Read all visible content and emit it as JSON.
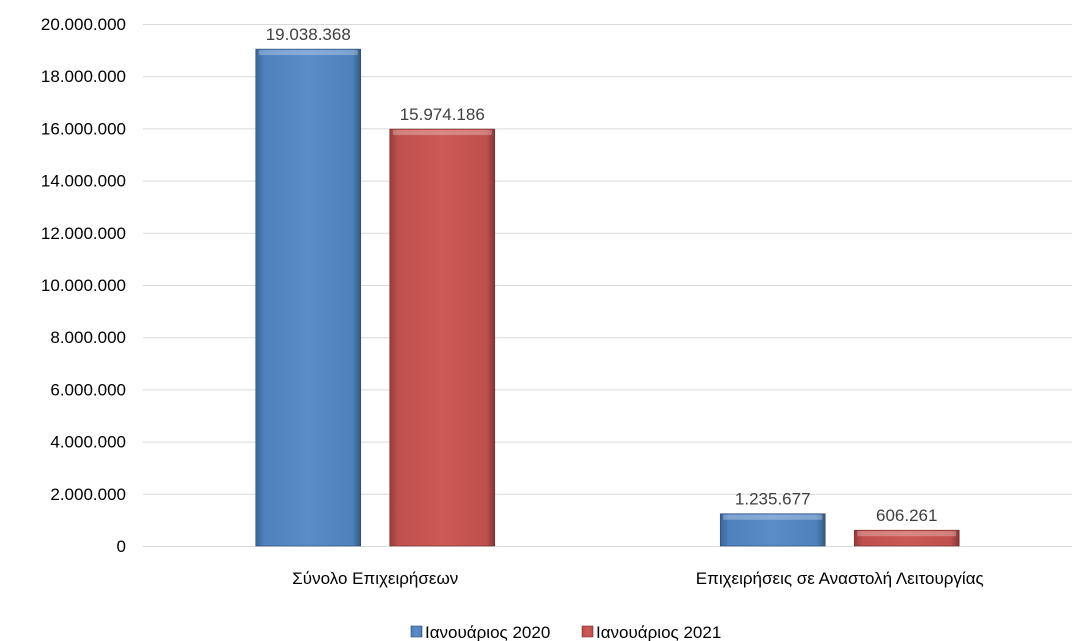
{
  "chart_data": {
    "type": "bar",
    "categories": [
      "Σύνολο Επιχειρήσεων",
      "Επιχειρήσεις σε Αναστολή Λειτουργίας"
    ],
    "series": [
      {
        "name": "Ιανουάριος 2020",
        "values": [
          19038368,
          1235677
        ],
        "labels": [
          "19.038.368",
          "1.235.677"
        ],
        "color": "#4f81bd"
      },
      {
        "name": "Ιανουάριος 2021",
        "values": [
          15974186,
          606261
        ],
        "labels": [
          "15.974.186",
          "606.261"
        ],
        "color": "#c0504d"
      }
    ],
    "yticks": [
      {
        "value": 0,
        "label": "0"
      },
      {
        "value": 2000000,
        "label": "2.000.000"
      },
      {
        "value": 4000000,
        "label": "4.000.000"
      },
      {
        "value": 6000000,
        "label": "6.000.000"
      },
      {
        "value": 8000000,
        "label": "8.000.000"
      },
      {
        "value": 10000000,
        "label": "10.000.000"
      },
      {
        "value": 12000000,
        "label": "12.000.000"
      },
      {
        "value": 14000000,
        "label": "14.000.000"
      },
      {
        "value": 16000000,
        "label": "16.000.000"
      },
      {
        "value": 18000000,
        "label": "18.000.000"
      },
      {
        "value": 20000000,
        "label": "20.000.000"
      }
    ],
    "ylim": [
      0,
      20000000
    ],
    "grid": true,
    "legend": "bottom",
    "title": "",
    "xlabel": "",
    "ylabel": ""
  }
}
